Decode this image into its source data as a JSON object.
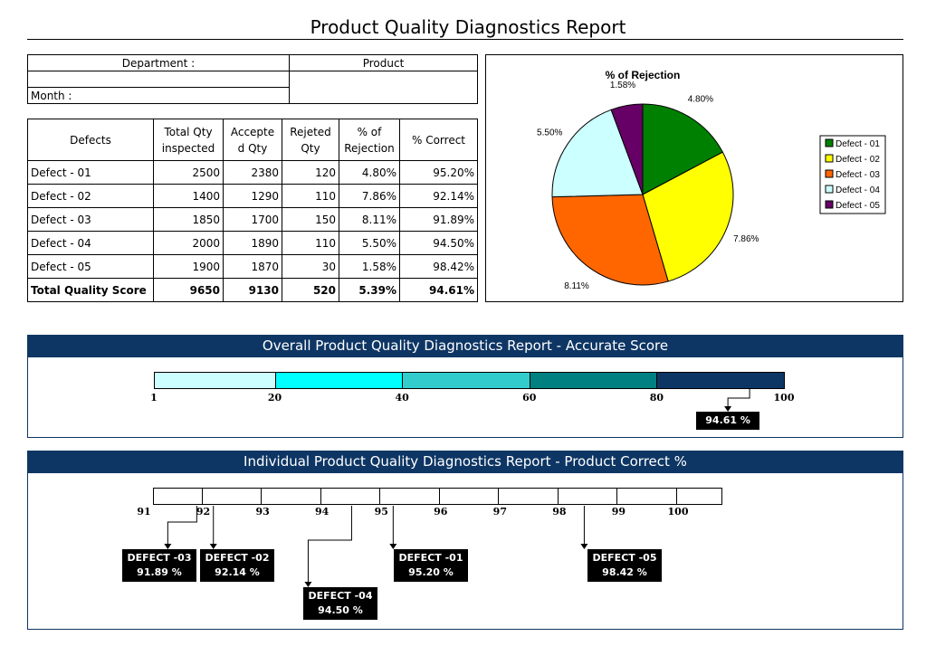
{
  "title": "Product Quality Diagnostics Report",
  "info": {
    "department_label": "Department :",
    "product_label": "Product",
    "month_label": "Month :"
  },
  "table": {
    "headers": [
      "Defects",
      "Total Qty\ninspected",
      "Accepte\nd Qty",
      "Rejeted\nQty",
      "% of\nRejection",
      "% Correct"
    ],
    "rows": [
      [
        "Defect - 01",
        "2500",
        "2380",
        "120",
        "4.80%",
        "95.20%"
      ],
      [
        "Defect - 02",
        "1400",
        "1290",
        "110",
        "7.86%",
        "92.14%"
      ],
      [
        "Defect - 03",
        "1850",
        "1700",
        "150",
        "8.11%",
        "91.89%"
      ],
      [
        "Defect - 04",
        "2000",
        "1890",
        "110",
        "5.50%",
        "94.50%"
      ],
      [
        "Defect - 05",
        "1900",
        "1870",
        "30",
        "1.58%",
        "98.42%"
      ]
    ],
    "total": [
      "Total Quality Score",
      "9650",
      "9130",
      "520",
      "5.39%",
      "94.61%"
    ]
  },
  "chart_data": {
    "type": "pie",
    "title": "% of Rejection",
    "categories": [
      "Defect - 01",
      "Defect - 02",
      "Defect - 03",
      "Defect - 04",
      "Defect - 05"
    ],
    "values": [
      4.8,
      7.86,
      8.11,
      5.5,
      1.58
    ],
    "labels": [
      "4.80%",
      "7.86%",
      "8.11%",
      "5.50%",
      "1.58%"
    ],
    "colors": [
      "#008000",
      "#ffff00",
      "#ff6600",
      "#ccffff",
      "#660066"
    ],
    "legend": "right"
  },
  "overall": {
    "title": "Overall Product Quality Diagnostics Report - Accurate Score",
    "ticks": [
      "1",
      "20",
      "40",
      "60",
      "80",
      "100"
    ],
    "tick_values": [
      1,
      20,
      40,
      60,
      80,
      100
    ],
    "segment_colors": [
      "#ccffff",
      "#00ffff",
      "#33cccc",
      "#008080",
      "#0e3664"
    ],
    "score_value": 94.61,
    "score_label": "94.61 %"
  },
  "individual": {
    "title": "Individual Product Quality Diagnostics Report - Product Correct %",
    "ticks": [
      "91",
      "92",
      "93",
      "94",
      "95",
      "96",
      "97",
      "98",
      "99",
      "100"
    ],
    "tick_values": [
      91,
      92,
      93,
      94,
      95,
      96,
      97,
      98,
      99,
      100
    ],
    "callouts": [
      {
        "name": "DEFECT -03",
        "value_label": "91.89 %",
        "value": 91.89
      },
      {
        "name": "DEFECT -02",
        "value_label": "92.14 %",
        "value": 92.14
      },
      {
        "name": "DEFECT -04",
        "value_label": "94.50 %",
        "value": 94.5
      },
      {
        "name": "DEFECT -01",
        "value_label": "95.20 %",
        "value": 95.2
      },
      {
        "name": "DEFECT -05",
        "value_label": "98.42 %",
        "value": 98.42
      }
    ]
  }
}
